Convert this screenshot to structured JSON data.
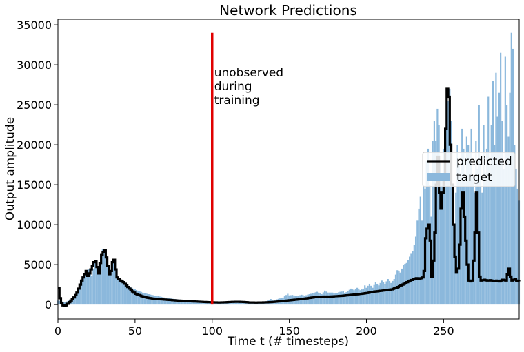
{
  "chart_data": {
    "type": "line",
    "title": "Network Predictions",
    "xlabel": "Time t (# timesteps)",
    "ylabel": "Output amplitude",
    "xlim": [
      0,
      299
    ],
    "ylim": [
      -1800,
      35700
    ],
    "xticks": [
      0,
      50,
      100,
      150,
      200,
      250
    ],
    "yticks": [
      0,
      5000,
      10000,
      15000,
      20000,
      25000,
      30000,
      35000
    ],
    "grid": false,
    "legend_position": "center-right",
    "annotation": {
      "lines": [
        "unobserved",
        "during",
        "training"
      ],
      "x": 100,
      "line_top": 34000,
      "line_bottom": 0,
      "color": "#e00000"
    },
    "series": [
      {
        "name": "predicted",
        "kind": "step-line",
        "color": "#000000",
        "points": [
          [
            0,
            2100
          ],
          [
            1,
            800
          ],
          [
            2,
            200
          ],
          [
            3,
            -100
          ],
          [
            4,
            -200
          ],
          [
            5,
            -100
          ],
          [
            6,
            100
          ],
          [
            7,
            300
          ],
          [
            8,
            500
          ],
          [
            9,
            700
          ],
          [
            10,
            900
          ],
          [
            11,
            1200
          ],
          [
            12,
            1500
          ],
          [
            13,
            2000
          ],
          [
            14,
            2500
          ],
          [
            15,
            3000
          ],
          [
            16,
            3400
          ],
          [
            17,
            3800
          ],
          [
            18,
            4200
          ],
          [
            19,
            3600
          ],
          [
            20,
            3900
          ],
          [
            21,
            4400
          ],
          [
            22,
            4800
          ],
          [
            23,
            5300
          ],
          [
            24,
            5400
          ],
          [
            25,
            4700
          ],
          [
            26,
            3900
          ],
          [
            27,
            5200
          ],
          [
            28,
            6200
          ],
          [
            29,
            6600
          ],
          [
            30,
            6800
          ],
          [
            31,
            5900
          ],
          [
            32,
            4800
          ],
          [
            33,
            3800
          ],
          [
            34,
            4200
          ],
          [
            35,
            5300
          ],
          [
            36,
            5600
          ],
          [
            37,
            4400
          ],
          [
            38,
            3400
          ],
          [
            39,
            3200
          ],
          [
            40,
            3000
          ],
          [
            41,
            2900
          ],
          [
            42,
            2800
          ],
          [
            43,
            2600
          ],
          [
            44,
            2400
          ],
          [
            45,
            2200
          ],
          [
            46,
            2000
          ],
          [
            47,
            1800
          ],
          [
            48,
            1650
          ],
          [
            49,
            1500
          ],
          [
            50,
            1350
          ],
          [
            52,
            1200
          ],
          [
            54,
            1050
          ],
          [
            56,
            950
          ],
          [
            58,
            850
          ],
          [
            60,
            780
          ],
          [
            64,
            700
          ],
          [
            68,
            640
          ],
          [
            72,
            580
          ],
          [
            76,
            520
          ],
          [
            80,
            470
          ],
          [
            85,
            420
          ],
          [
            90,
            370
          ],
          [
            95,
            320
          ],
          [
            100,
            280
          ],
          [
            104,
            260
          ],
          [
            108,
            280
          ],
          [
            112,
            330
          ],
          [
            116,
            350
          ],
          [
            120,
            320
          ],
          [
            124,
            260
          ],
          [
            128,
            250
          ],
          [
            132,
            260
          ],
          [
            136,
            290
          ],
          [
            140,
            340
          ],
          [
            144,
            420
          ],
          [
            148,
            500
          ],
          [
            152,
            580
          ],
          [
            156,
            660
          ],
          [
            160,
            760
          ],
          [
            164,
            870
          ],
          [
            168,
            990
          ],
          [
            172,
            1000
          ],
          [
            176,
            1000
          ],
          [
            180,
            1050
          ],
          [
            184,
            1100
          ],
          [
            188,
            1180
          ],
          [
            192,
            1260
          ],
          [
            196,
            1340
          ],
          [
            200,
            1450
          ],
          [
            204,
            1600
          ],
          [
            208,
            1700
          ],
          [
            212,
            1800
          ],
          [
            216,
            1900
          ],
          [
            220,
            2200
          ],
          [
            224,
            2600
          ],
          [
            228,
            3000
          ],
          [
            232,
            3300
          ],
          [
            234,
            3200
          ],
          [
            236,
            3400
          ],
          [
            237,
            4200
          ],
          [
            238,
            8300
          ],
          [
            239,
            9500
          ],
          [
            240,
            10000
          ],
          [
            241,
            8000
          ],
          [
            242,
            3500
          ],
          [
            243,
            5500
          ],
          [
            244,
            9000
          ],
          [
            245,
            15000
          ],
          [
            246,
            18500
          ],
          [
            247,
            14000
          ],
          [
            248,
            12000
          ],
          [
            249,
            14000
          ],
          [
            250,
            16000
          ],
          [
            251,
            22000
          ],
          [
            252,
            27000
          ],
          [
            253,
            26000
          ],
          [
            254,
            20000
          ],
          [
            255,
            15000
          ],
          [
            256,
            10000
          ],
          [
            257,
            6000
          ],
          [
            258,
            4000
          ],
          [
            259,
            4500
          ],
          [
            260,
            7500
          ],
          [
            261,
            12000
          ],
          [
            262,
            14000
          ],
          [
            263,
            11000
          ],
          [
            264,
            8000
          ],
          [
            265,
            5000
          ],
          [
            266,
            3000
          ],
          [
            267,
            2900
          ],
          [
            268,
            3000
          ],
          [
            269,
            5500
          ],
          [
            270,
            9000
          ],
          [
            271,
            14000
          ],
          [
            272,
            9000
          ],
          [
            273,
            3500
          ],
          [
            274,
            3000
          ],
          [
            276,
            3100
          ],
          [
            278,
            3000
          ],
          [
            280,
            3050
          ],
          [
            282,
            2950
          ],
          [
            284,
            3000
          ],
          [
            286,
            2900
          ],
          [
            288,
            3100
          ],
          [
            290,
            3000
          ],
          [
            292,
            4500
          ],
          [
            293,
            3500
          ],
          [
            294,
            3000
          ],
          [
            296,
            3200
          ],
          [
            297,
            3000
          ],
          [
            299,
            2900
          ]
        ]
      },
      {
        "name": "target",
        "kind": "bar",
        "color": "#8bb8dc",
        "points": [
          [
            0,
            500
          ],
          [
            5,
            300
          ],
          [
            10,
            800
          ],
          [
            15,
            2700
          ],
          [
            18,
            3900
          ],
          [
            20,
            4400
          ],
          [
            22,
            3600
          ],
          [
            24,
            5400
          ],
          [
            26,
            4300
          ],
          [
            27,
            5200
          ],
          [
            28,
            6000
          ],
          [
            29,
            6900
          ],
          [
            30,
            6700
          ],
          [
            31,
            6200
          ],
          [
            32,
            4900
          ],
          [
            33,
            4000
          ],
          [
            34,
            3900
          ],
          [
            36,
            5600
          ],
          [
            38,
            3500
          ],
          [
            40,
            3200
          ],
          [
            45,
            2400
          ],
          [
            50,
            1900
          ],
          [
            55,
            1500
          ],
          [
            60,
            1250
          ],
          [
            65,
            1050
          ],
          [
            70,
            850
          ],
          [
            75,
            720
          ],
          [
            80,
            600
          ],
          [
            85,
            520
          ],
          [
            90,
            440
          ],
          [
            95,
            390
          ],
          [
            100,
            350
          ],
          [
            105,
            340
          ],
          [
            110,
            420
          ],
          [
            115,
            460
          ],
          [
            120,
            390
          ],
          [
            125,
            340
          ],
          [
            130,
            380
          ],
          [
            135,
            420
          ],
          [
            138,
            700
          ],
          [
            140,
            520
          ],
          [
            143,
            720
          ],
          [
            146,
            880
          ],
          [
            149,
            1350
          ],
          [
            150,
            1150
          ],
          [
            152,
            1200
          ],
          [
            155,
            1050
          ],
          [
            158,
            1230
          ],
          [
            160,
            1100
          ],
          [
            162,
            1250
          ],
          [
            165,
            1400
          ],
          [
            168,
            1600
          ],
          [
            171,
            1300
          ],
          [
            173,
            1750
          ],
          [
            175,
            1500
          ],
          [
            178,
            1500
          ],
          [
            180,
            1400
          ],
          [
            183,
            1600
          ],
          [
            185,
            1650
          ],
          [
            186,
            1400
          ],
          [
            188,
            1700
          ],
          [
            190,
            2000
          ],
          [
            192,
            1800
          ],
          [
            194,
            2100
          ],
          [
            196,
            1800
          ],
          [
            198,
            2000
          ],
          [
            199,
            2400
          ],
          [
            200,
            2100
          ],
          [
            202,
            2600
          ],
          [
            204,
            2100
          ],
          [
            206,
            2800
          ],
          [
            208,
            2400
          ],
          [
            210,
            3000
          ],
          [
            212,
            2600
          ],
          [
            214,
            3200
          ],
          [
            216,
            2700
          ],
          [
            218,
            3200
          ],
          [
            220,
            4300
          ],
          [
            222,
            4000
          ],
          [
            224,
            5000
          ],
          [
            226,
            5200
          ],
          [
            228,
            6000
          ],
          [
            230,
            6700
          ],
          [
            231,
            7500
          ],
          [
            232,
            8500
          ],
          [
            233,
            10500
          ],
          [
            234,
            12000
          ],
          [
            235,
            13500
          ],
          [
            236,
            10500
          ],
          [
            237,
            15000
          ],
          [
            238,
            14500
          ],
          [
            239,
            18000
          ],
          [
            240,
            19500
          ],
          [
            241,
            15000
          ],
          [
            242,
            11000
          ],
          [
            243,
            20500
          ],
          [
            244,
            23000
          ],
          [
            245,
            20500
          ],
          [
            246,
            24500
          ],
          [
            247,
            22500
          ],
          [
            248,
            18000
          ],
          [
            249,
            15500
          ],
          [
            250,
            19500
          ],
          [
            251,
            21500
          ],
          [
            252,
            26500
          ],
          [
            253,
            25500
          ],
          [
            254,
            27000
          ],
          [
            255,
            23000
          ],
          [
            256,
            13500
          ],
          [
            257,
            8000
          ],
          [
            258,
            14000
          ],
          [
            259,
            20000
          ],
          [
            260,
            17500
          ],
          [
            261,
            16500
          ],
          [
            262,
            22000
          ],
          [
            263,
            19500
          ],
          [
            264,
            16000
          ],
          [
            265,
            21000
          ],
          [
            266,
            20000
          ],
          [
            267,
            19000
          ],
          [
            268,
            22000
          ],
          [
            269,
            16000
          ],
          [
            270,
            14000
          ],
          [
            271,
            20500
          ],
          [
            272,
            17000
          ],
          [
            273,
            25000
          ],
          [
            274,
            18500
          ],
          [
            275,
            14000
          ],
          [
            276,
            22500
          ],
          [
            277,
            16500
          ],
          [
            278,
            19500
          ],
          [
            279,
            26000
          ],
          [
            280,
            17500
          ],
          [
            281,
            22500
          ],
          [
            282,
            28000
          ],
          [
            283,
            20000
          ],
          [
            284,
            29000
          ],
          [
            285,
            23500
          ],
          [
            286,
            26500
          ],
          [
            287,
            31500
          ],
          [
            288,
            23000
          ],
          [
            289,
            17000
          ],
          [
            290,
            31000
          ],
          [
            291,
            25000
          ],
          [
            292,
            21000
          ],
          [
            293,
            26500
          ],
          [
            294,
            34000
          ],
          [
            295,
            32000
          ],
          [
            296,
            20000
          ],
          [
            297,
            17000
          ],
          [
            298,
            14500
          ],
          [
            299,
            13000
          ]
        ]
      }
    ]
  }
}
